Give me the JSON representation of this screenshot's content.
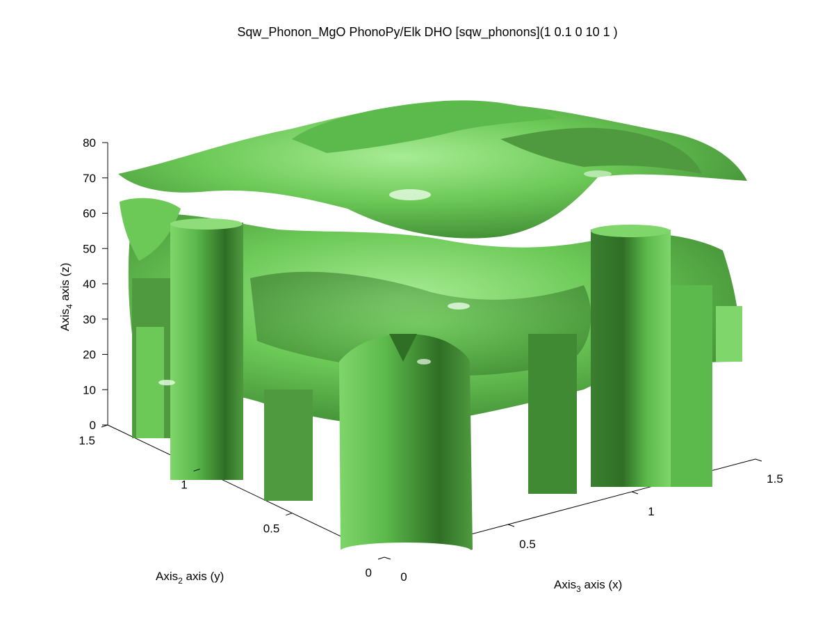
{
  "chart_data": {
    "type": "isosurface",
    "title": "Sqw_Phonon_MgO PhonoPy/Elk DHO [sqw_phonons](1 0.1 0 10 1 )",
    "colors": {
      "surface_light": "#7fd66a",
      "surface_mid": "#5cb94b",
      "surface_dark": "#2f6e25",
      "highlight": "#eafbe6"
    },
    "axes": {
      "x": {
        "label_main": "Axis",
        "label_sub": "3",
        "label_rest": " axis (x)",
        "ticks": [
          "0",
          "0.5",
          "1",
          "1.5"
        ],
        "range": [
          0,
          1.5
        ]
      },
      "y": {
        "label_main": "Axis",
        "label_sub": "2",
        "label_rest": " axis (y)",
        "ticks": [
          "0",
          "0.5",
          "1",
          "1.5"
        ],
        "range": [
          0,
          1.5
        ]
      },
      "z": {
        "label_main": "Axis",
        "label_sub": "4",
        "label_rest": " axis (z)",
        "ticks": [
          "0",
          "10",
          "20",
          "30",
          "40",
          "50",
          "60",
          "70",
          "80"
        ],
        "range": [
          0,
          80
        ]
      }
    },
    "grid": false,
    "legend": "none"
  }
}
